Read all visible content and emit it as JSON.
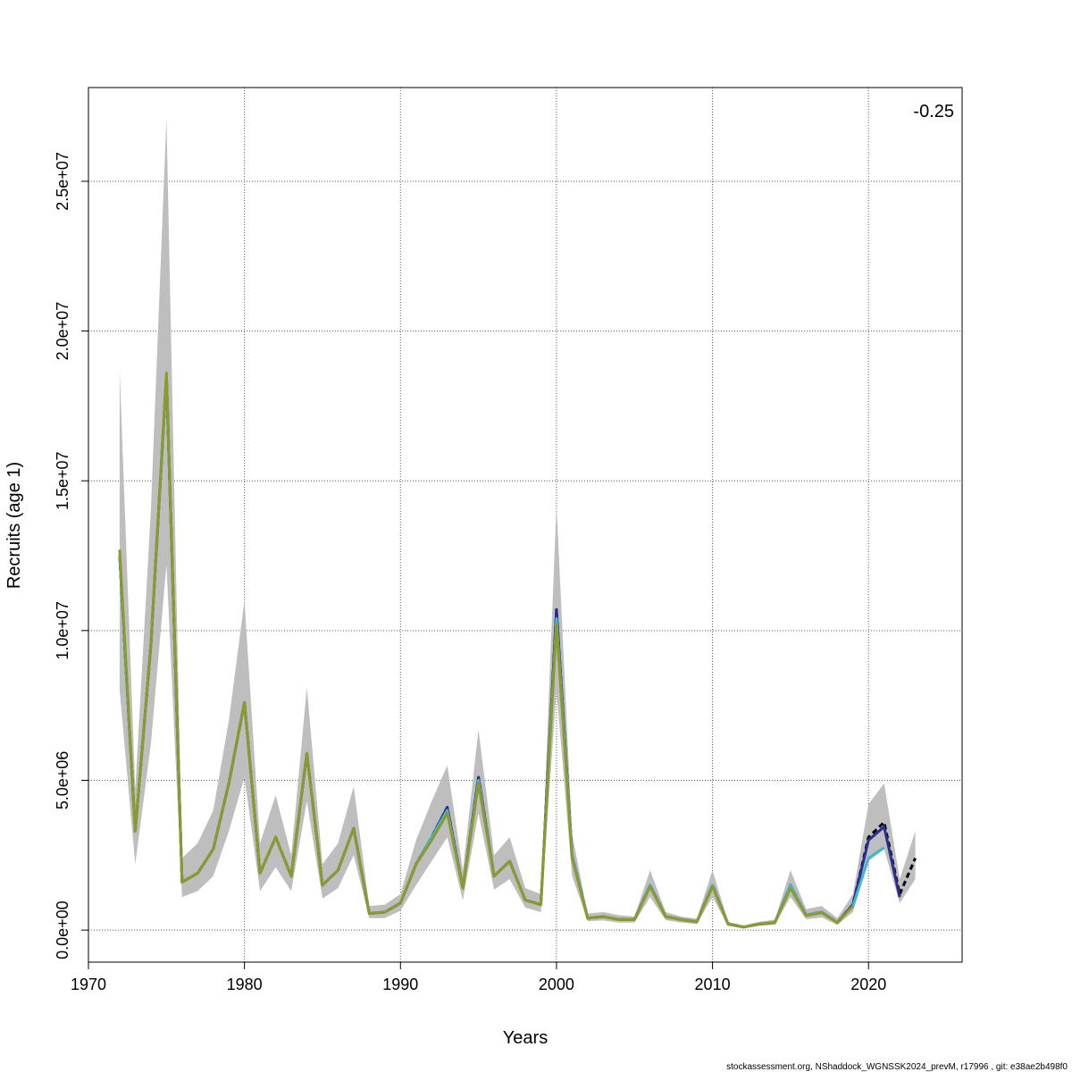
{
  "chart_data": {
    "type": "line",
    "xlabel": "Years",
    "ylabel": "Recruits (age 1)",
    "annotation": "-0.25",
    "footer": "stockassessment.org, NShaddock_WGNSSK2024_prevM, r17996 , git: e38ae2b498f0",
    "xlim": [
      1970,
      2026
    ],
    "ylim": [
      -1070000,
      28130000
    ],
    "xticks": [
      1970,
      1980,
      1990,
      2000,
      2010,
      2020
    ],
    "yticks": [
      {
        "value": 0,
        "label": "0.0e+00"
      },
      {
        "value": 5000000,
        "label": "5.0e+06"
      },
      {
        "value": 10000000,
        "label": "1.0e+07"
      },
      {
        "value": 15000000,
        "label": "1.5e+07"
      },
      {
        "value": 20000000,
        "label": "2.0e+07"
      },
      {
        "value": 25000000,
        "label": "2.5e+07"
      }
    ],
    "grid": true,
    "x": [
      1972,
      1973,
      1974,
      1975,
      1976,
      1977,
      1978,
      1979,
      1980,
      1981,
      1982,
      1983,
      1984,
      1985,
      1986,
      1987,
      1988,
      1989,
      1990,
      1991,
      1992,
      1993,
      1994,
      1995,
      1996,
      1997,
      1998,
      1999,
      2000,
      2001,
      2002,
      2003,
      2004,
      2005,
      2006,
      2007,
      2008,
      2009,
      2010,
      2011,
      2012,
      2013,
      2014,
      2015,
      2016,
      2017,
      2018,
      2019,
      2020,
      2021,
      2022,
      2023
    ],
    "band": {
      "color": "#bebebe",
      "upper": [
        18700000,
        4700000,
        14000000,
        27100000,
        2400000,
        2900000,
        4000000,
        7000000,
        11000000,
        2900000,
        4500000,
        2500000,
        8100000,
        2200000,
        2900000,
        4800000,
        800000,
        850000,
        1200000,
        3000000,
        4300000,
        5500000,
        2000000,
        6700000,
        2500000,
        3100000,
        1400000,
        1200000,
        14200000,
        3200000,
        550000,
        600000,
        500000,
        450000,
        2000000,
        600000,
        450000,
        380000,
        2000000,
        280000,
        150000,
        280000,
        350000,
        2000000,
        700000,
        800000,
        400000,
        1200000,
        4200000,
        4900000,
        1700000,
        3300000
      ],
      "lower": [
        8000000,
        2200000,
        6200000,
        12200000,
        1100000,
        1300000,
        1800000,
        3300000,
        5100000,
        1300000,
        2100000,
        1300000,
        4300000,
        1050000,
        1400000,
        2500000,
        400000,
        400000,
        650000,
        1500000,
        2300000,
        3100000,
        1000000,
        3900000,
        1350000,
        1700000,
        750000,
        600000,
        8000000,
        1800000,
        300000,
        320000,
        250000,
        250000,
        1100000,
        330000,
        250000,
        200000,
        1100000,
        140000,
        70000,
        140000,
        180000,
        1100000,
        360000,
        420000,
        170000,
        600000,
        2300000,
        2700000,
        900000,
        1700000
      ]
    },
    "series": [
      {
        "color": "#000000",
        "dashed": true,
        "values": [
          12500000,
          3300000,
          9500000,
          18500000,
          1600000,
          1900000,
          2700000,
          4900000,
          7600000,
          1900000,
          3100000,
          1800000,
          5900000,
          1500000,
          2000000,
          3400000,
          550000,
          600000,
          900000,
          2200000,
          3100000,
          4100000,
          1400000,
          5100000,
          1800000,
          2300000,
          1000000,
          850000,
          10700000,
          2500000,
          400000,
          450000,
          350000,
          350000,
          1500000,
          450000,
          350000,
          280000,
          1500000,
          200000,
          100000,
          200000,
          250000,
          1500000,
          500000,
          600000,
          250000,
          850000,
          3100000,
          3600000,
          1200000,
          2400000
        ]
      },
      {
        "color": "#2b2d8f",
        "values": [
          12500000,
          3300000,
          9500000,
          18500000,
          1600000,
          1900000,
          2700000,
          4900000,
          7600000,
          1900000,
          3100000,
          1800000,
          5900000,
          1500000,
          2000000,
          3400000,
          550000,
          600000,
          900000,
          2200000,
          3100000,
          4100000,
          1400000,
          5100000,
          1800000,
          2300000,
          1000000,
          850000,
          10700000,
          2500000,
          400000,
          450000,
          350000,
          350000,
          1500000,
          450000,
          350000,
          280000,
          1500000,
          200000,
          100000,
          200000,
          250000,
          1500000,
          500000,
          600000,
          250000,
          850000,
          3000000,
          3450000,
          1100000,
          null
        ]
      },
      {
        "color": "#3fb8d0",
        "values": [
          12500000,
          3300000,
          9500000,
          18500000,
          1600000,
          1900000,
          2700000,
          4900000,
          7600000,
          1900000,
          3100000,
          1800000,
          5900000,
          1500000,
          2000000,
          3400000,
          550000,
          600000,
          900000,
          2200000,
          3100000,
          4000000,
          1400000,
          5000000,
          1800000,
          2300000,
          1000000,
          850000,
          10400000,
          2500000,
          400000,
          450000,
          350000,
          350000,
          1500000,
          450000,
          350000,
          280000,
          1500000,
          200000,
          100000,
          200000,
          250000,
          1500000,
          500000,
          600000,
          250000,
          800000,
          2400000,
          2750000,
          null,
          null
        ]
      },
      {
        "color": "#8c9a2a",
        "values": [
          12700000,
          3300000,
          9500000,
          18600000,
          1600000,
          1900000,
          2700000,
          4900000,
          7600000,
          1900000,
          3100000,
          1800000,
          5900000,
          1500000,
          2000000,
          3400000,
          550000,
          600000,
          900000,
          2200000,
          3000000,
          3900000,
          1400000,
          4900000,
          1800000,
          2300000,
          1000000,
          850000,
          10200000,
          2400000,
          400000,
          450000,
          350000,
          350000,
          1450000,
          450000,
          350000,
          280000,
          1450000,
          200000,
          100000,
          200000,
          250000,
          1400000,
          480000,
          580000,
          250000,
          800000,
          null,
          null,
          null,
          null
        ]
      }
    ]
  }
}
